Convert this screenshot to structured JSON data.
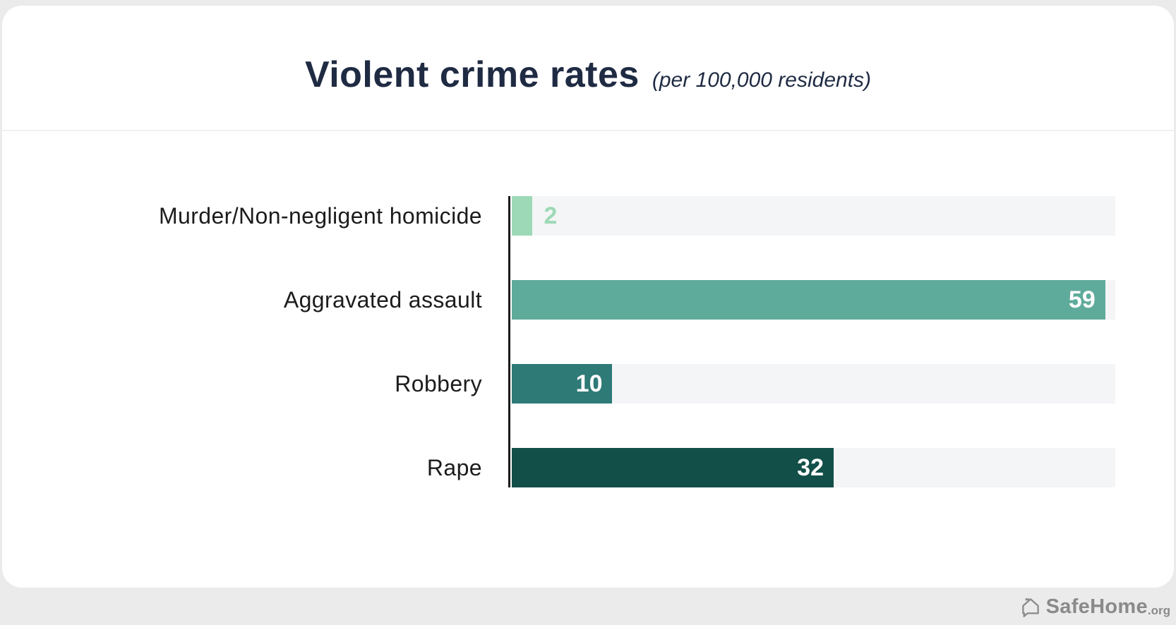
{
  "header": {
    "title": "Violent crime rates",
    "subtitle": "(per 100,000 residents)",
    "title_color": "#1f2b43"
  },
  "chart_data": {
    "type": "bar",
    "orientation": "horizontal",
    "title": "Violent crime rates (per 100,000 residents)",
    "categories": [
      "Murder/Non-negligent homicide",
      "Aggravated assault",
      "Robbery",
      "Rape"
    ],
    "values": [
      2,
      59,
      10,
      32
    ],
    "xlim": [
      0,
      60
    ],
    "bar_colors": [
      "#9dd9b6",
      "#5fab9b",
      "#2e7a77",
      "#134f49"
    ],
    "value_label_colors": [
      "#9dd9b6",
      "#ffffff",
      "#ffffff",
      "#ffffff"
    ],
    "value_label_position": [
      "outside",
      "inside",
      "inside",
      "inside"
    ],
    "track_color": "#f4f5f7",
    "axis_color": "#1a1a1a",
    "grid": false,
    "legend": false
  },
  "footer": {
    "brand_name": "SafeHome",
    "brand_suffix": ".org",
    "brand_color": "#8a8a8a"
  }
}
